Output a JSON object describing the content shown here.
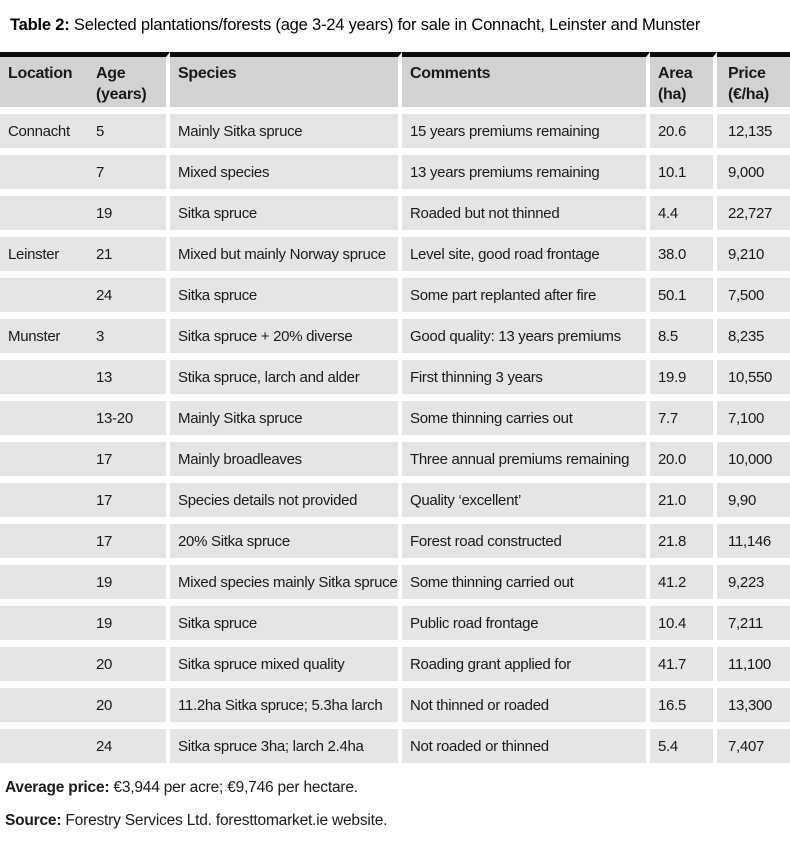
{
  "title": {
    "label": "Table 2:",
    "text": " Selected plantations/forests (age 3-24 years) for sale in Connacht, Leinster and Munster"
  },
  "table": {
    "headers": [
      {
        "line1": "Location",
        "line2": ""
      },
      {
        "line1": "Age",
        "line2": "(years)"
      },
      {
        "line1": "Species",
        "line2": ""
      },
      {
        "line1": "Comments",
        "line2": ""
      },
      {
        "line1": "Area",
        "line2": "(ha)"
      },
      {
        "line1": "Price",
        "line2": "(€/ha)"
      }
    ],
    "rows": [
      {
        "location": "Connacht",
        "age": "5",
        "species": "Mainly Sitka spruce",
        "comments": "15 years premiums remaining",
        "area": "20.6",
        "price": "12,135"
      },
      {
        "location": "",
        "age": "7",
        "species": "Mixed species",
        "comments": "13 years premiums remaining",
        "area": "10.1",
        "price": "9,000"
      },
      {
        "location": "",
        "age": "19",
        "species": "Sitka spruce",
        "comments": "Roaded but not thinned",
        "area": "4.4",
        "price": "22,727"
      },
      {
        "location": "Leinster",
        "age": "21",
        "species": "Mixed but mainly Norway spruce",
        "comments": "Level site, good road frontage",
        "area": "38.0",
        "price": "9,210"
      },
      {
        "location": "",
        "age": "24",
        "species": "Sitka spruce",
        "comments": "Some part replanted after fire",
        "area": "50.1",
        "price": "7,500"
      },
      {
        "location": "Munster",
        "age": "3",
        "species": "Sitka spruce + 20% diverse",
        "comments": "Good quality: 13 years premiums",
        "area": "8.5",
        "price": "8,235"
      },
      {
        "location": "",
        "age": "13",
        "species": "Stika spruce, larch and alder",
        "comments": "First thinning 3 years",
        "area": "19.9",
        "price": "10,550"
      },
      {
        "location": "",
        "age": "13-20",
        "species": "Mainly Sitka spruce",
        "comments": "Some thinning carries out",
        "area": "7.7",
        "price": "7,100"
      },
      {
        "location": "",
        "age": "17",
        "species": "Mainly broadleaves",
        "comments": "Three annual premiums remaining",
        "area": "20.0",
        "price": "10,000"
      },
      {
        "location": "",
        "age": "17",
        "species": "Species details not provided",
        "comments": "Quality ‘excellent’",
        "area": "21.0",
        "price": "9,90"
      },
      {
        "location": "",
        "age": "17",
        "species": "20% Sitka spruce",
        "comments": "Forest road constructed",
        "area": "21.8",
        "price": "11,146"
      },
      {
        "location": "",
        "age": "19",
        "species": "Mixed species mainly Sitka spruce",
        "comments": "Some thinning carried out",
        "area": "41.2",
        "price": "9,223"
      },
      {
        "location": "",
        "age": "19",
        "species": "Sitka spruce",
        "comments": "Public road frontage",
        "area": "10.4",
        "price": "7,211"
      },
      {
        "location": "",
        "age": "20",
        "species": "Sitka spruce mixed quality",
        "comments": "Roading grant applied for",
        "area": "41.7",
        "price": "11,100"
      },
      {
        "location": "",
        "age": "20",
        "species": "11.2ha Sitka spruce; 5.3ha larch",
        "comments": "Not  thinned or roaded",
        "area": "16.5",
        "price": "13,300"
      },
      {
        "location": "",
        "age": "24",
        "species": "Sitka spruce 3ha; larch 2.4ha",
        "comments": "Not roaded or thinned",
        "area": "5.4",
        "price": "7,407"
      }
    ]
  },
  "footer": {
    "average_label": "Average price:",
    "average_text": " €3,944 per acre;  €9,746 per hectare.",
    "source_label": "Source:",
    "source_text": " Forestry Services Ltd. foresttomarket.ie website."
  },
  "colors": {
    "header_bg": "#d2d2d2",
    "row_bg": "#e5e5e5",
    "top_rule": "#0b0b0b"
  }
}
